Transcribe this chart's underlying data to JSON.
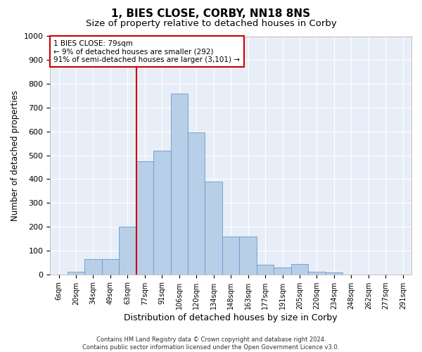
{
  "title1": "1, BIES CLOSE, CORBY, NN18 8NS",
  "title2": "Size of property relative to detached houses in Corby",
  "xlabel": "Distribution of detached houses by size in Corby",
  "ylabel": "Number of detached properties",
  "footer1": "Contains HM Land Registry data © Crown copyright and database right 2024.",
  "footer2": "Contains public sector information licensed under the Open Government Licence v3.0.",
  "annotation_line1": "1 BIES CLOSE: 79sqm",
  "annotation_line2": "← 9% of detached houses are smaller (292)",
  "annotation_line3": "91% of semi-detached houses are larger (3,101) →",
  "bar_labels": [
    "6sqm",
    "20sqm",
    "34sqm",
    "49sqm",
    "63sqm",
    "77sqm",
    "91sqm",
    "106sqm",
    "120sqm",
    "134sqm",
    "148sqm",
    "163sqm",
    "177sqm",
    "191sqm",
    "205sqm",
    "220sqm",
    "234sqm",
    "248sqm",
    "262sqm",
    "277sqm",
    "291sqm"
  ],
  "bar_values": [
    0,
    12,
    65,
    65,
    200,
    475,
    520,
    760,
    595,
    390,
    160,
    160,
    40,
    28,
    44,
    12,
    8,
    0,
    0,
    0,
    0
  ],
  "bar_color": "#b8cfe8",
  "bar_edge_color": "#6699cc",
  "vline_index": 5,
  "vline_color": "#cc0000",
  "annotation_box_color": "#cc0000",
  "ylim": [
    0,
    1000
  ],
  "yticks": [
    0,
    100,
    200,
    300,
    400,
    500,
    600,
    700,
    800,
    900,
    1000
  ],
  "bg_color": "#e8eef8",
  "grid_color": "#ffffff",
  "title1_fontsize": 11,
  "title2_fontsize": 9.5
}
